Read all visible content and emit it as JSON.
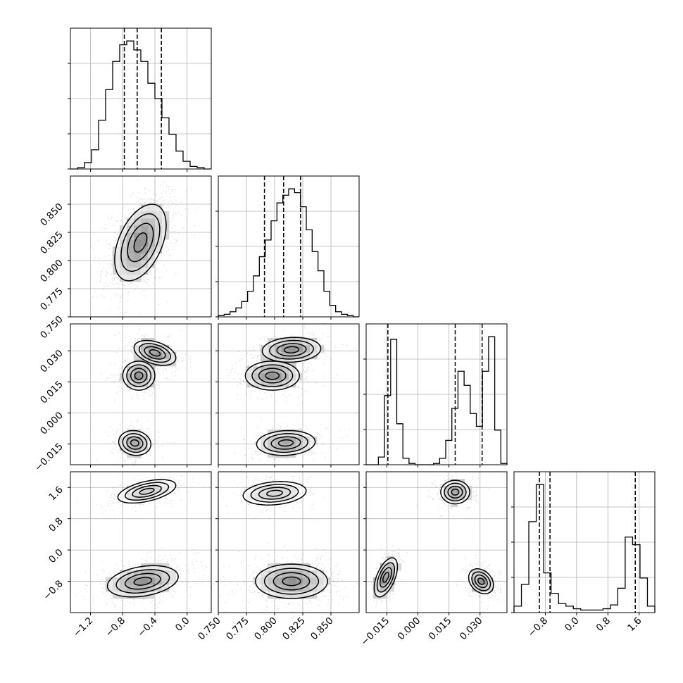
{
  "chart_data": {
    "type": "corner",
    "parameters": [
      {
        "range": [
          -1.45,
          0.3
        ],
        "ticks": [
          -1.2,
          -0.8,
          -0.4,
          0.0
        ],
        "tick_labels": [
          "−1.2",
          "−0.8",
          "−0.4",
          "0.0"
        ],
        "quantiles": [
          -0.78,
          -0.62,
          -0.32
        ]
      },
      {
        "range": [
          0.75,
          0.875
        ],
        "ticks": [
          0.75,
          0.775,
          0.8,
          0.825,
          0.85
        ],
        "tick_labels": [
          "0.750",
          "0.775",
          "0.800",
          "0.825",
          "0.850"
        ],
        "quantiles": [
          0.791,
          0.808,
          0.823
        ]
      },
      {
        "range": [
          -0.025,
          0.043
        ],
        "ticks": [
          -0.015,
          0.0,
          0.015,
          0.03
        ],
        "tick_labels": [
          "−0.015",
          "0.000",
          "0.015",
          "0.030"
        ],
        "quantiles": [
          -0.0145,
          0.018,
          0.031
        ]
      },
      {
        "range": [
          -1.6,
          2.0
        ],
        "ticks": [
          -0.8,
          0.0,
          0.8,
          1.6
        ],
        "tick_labels": [
          "−0.8",
          "0.0",
          "0.8",
          "1.6"
        ],
        "quantiles": [
          -0.95,
          -0.68,
          1.5
        ]
      }
    ],
    "histograms": [
      [
        0,
        0.01,
        0.05,
        0.15,
        0.38,
        0.62,
        0.84,
        0.97,
        1.0,
        0.93,
        0.84,
        0.67,
        0.55,
        0.4,
        0.27,
        0.14,
        0.06,
        0.02,
        0.01,
        0
      ],
      [
        0.01,
        0.02,
        0.04,
        0.07,
        0.12,
        0.2,
        0.32,
        0.47,
        0.6,
        0.75,
        0.89,
        0.95,
        1.0,
        0.97,
        0.86,
        0.68,
        0.51,
        0.36,
        0.2,
        0.09,
        0.04,
        0.02,
        0.01,
        0
      ],
      [
        0,
        0,
        0.06,
        0.54,
        0.98,
        0.32,
        0.05,
        0.01,
        0,
        0,
        0,
        0.01,
        0.05,
        0.19,
        0.44,
        0.73,
        0.62,
        0.4,
        0.3,
        0.73,
        1.0,
        0.27,
        0.01
      ],
      [
        0.05,
        0.22,
        0.71,
        1.0,
        0.31,
        0.15,
        0.07,
        0.05,
        0.03,
        0.02,
        0.02,
        0.02,
        0.03,
        0.06,
        0.19,
        0.59,
        0.53,
        0.27,
        0.05
      ]
    ],
    "density_modes": [
      {
        "pair": [
          0,
          1
        ],
        "blobs": [
          {
            "cx": -0.58,
            "cy": 0.816,
            "sx": 0.16,
            "sy": 0.017,
            "rho": 0.45,
            "w": 1.0
          }
        ]
      },
      {
        "pair": [
          0,
          2
        ],
        "blobs": [
          {
            "cx": -0.4,
            "cy": 0.029,
            "sx": 0.13,
            "sy": 0.003,
            "rho": -0.4,
            "w": 0.35
          },
          {
            "cx": -0.6,
            "cy": 0.018,
            "sx": 0.1,
            "sy": 0.0035,
            "rho": 0.0,
            "w": 0.35
          },
          {
            "cx": -0.65,
            "cy": -0.0145,
            "sx": 0.1,
            "sy": 0.003,
            "rho": -0.1,
            "w": 0.3
          }
        ]
      },
      {
        "pair": [
          1,
          2
        ],
        "blobs": [
          {
            "cx": 0.815,
            "cy": 0.0305,
            "sx": 0.013,
            "sy": 0.003,
            "rho": 0.1,
            "w": 0.35
          },
          {
            "cx": 0.798,
            "cy": 0.018,
            "sx": 0.012,
            "sy": 0.0035,
            "rho": 0.0,
            "w": 0.35
          },
          {
            "cx": 0.81,
            "cy": -0.0145,
            "sx": 0.013,
            "sy": 0.003,
            "rho": 0.1,
            "w": 0.3
          }
        ]
      },
      {
        "pair": [
          0,
          3
        ],
        "blobs": [
          {
            "cx": -0.5,
            "cy": 1.5,
            "sx": 0.18,
            "sy": 0.15,
            "rho": 0.5,
            "w": 0.3
          },
          {
            "cx": -0.55,
            "cy": -0.8,
            "sx": 0.22,
            "sy": 0.2,
            "rho": 0.3,
            "w": 0.7
          }
        ]
      },
      {
        "pair": [
          1,
          3
        ],
        "blobs": [
          {
            "cx": 0.8,
            "cy": 1.45,
            "sx": 0.014,
            "sy": 0.15,
            "rho": 0.2,
            "w": 0.3
          },
          {
            "cx": 0.815,
            "cy": -0.8,
            "sx": 0.016,
            "sy": 0.22,
            "rho": 0.0,
            "w": 0.7
          }
        ]
      },
      {
        "pair": [
          2,
          3
        ],
        "blobs": [
          {
            "cx": 0.018,
            "cy": 1.48,
            "sx": 0.0035,
            "sy": 0.15,
            "rho": 0.0,
            "w": 0.3
          },
          {
            "cx": 0.0305,
            "cy": -0.8,
            "sx": 0.003,
            "sy": 0.16,
            "rho": -0.3,
            "w": 0.35
          },
          {
            "cx": -0.0155,
            "cy": -0.7,
            "sx": 0.0028,
            "sy": 0.25,
            "rho": 0.55,
            "w": 0.35
          }
        ]
      }
    ],
    "grid": true
  }
}
